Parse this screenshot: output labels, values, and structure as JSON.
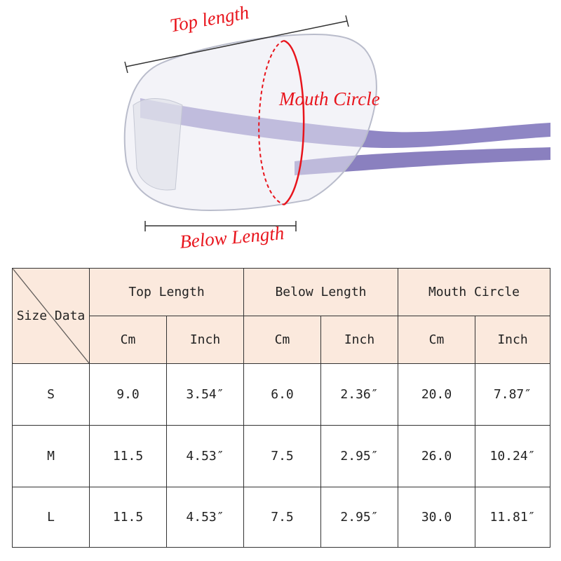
{
  "annotations": {
    "top_length": "Top length",
    "mouth_circle": "Mouth Circle",
    "below_length": "Below Length"
  },
  "colors": {
    "annotation": "#e8141c",
    "header_bg": "#fbe9dd",
    "strap": "#8f86c4"
  },
  "table": {
    "corner_label": "Size Data",
    "groups": [
      "Top Length",
      "Below Length",
      "Mouth Circle"
    ],
    "units": [
      "Cm",
      "Inch",
      "Cm",
      "Inch",
      "Cm",
      "Inch"
    ],
    "rows": [
      {
        "size": "S",
        "values": [
          "9.0",
          "3.54″",
          "6.0",
          "2.36″",
          "20.0",
          "7.87″"
        ]
      },
      {
        "size": "M",
        "values": [
          "11.5",
          "4.53″",
          "7.5",
          "2.95″",
          "26.0",
          "10.24″"
        ]
      },
      {
        "size": "L",
        "values": [
          "11.5",
          "4.53″",
          "7.5",
          "2.95″",
          "30.0",
          "11.81″"
        ]
      }
    ]
  }
}
